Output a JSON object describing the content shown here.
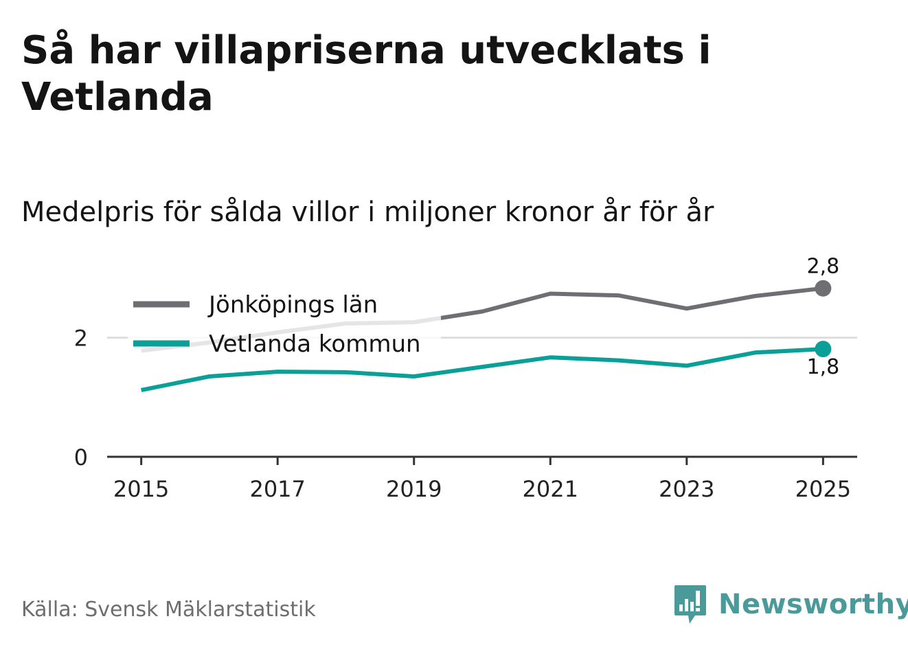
{
  "title": "Så har villapriserna utvecklats i Vetlanda",
  "subtitle": "Medelpris för sålda villor i miljoner kronor år för år",
  "source": "Källa: Svensk Mäklarstatistik",
  "brand": {
    "name": "Newsworthy",
    "icon": "newsworthy-logo-icon",
    "color": "#4a9a9a"
  },
  "colors": {
    "axis": "#333333",
    "grid": "#dddddd",
    "tick_text": "#222222"
  },
  "chart_data": {
    "type": "line",
    "title": "Så har villapriserna utvecklats i Vetlanda",
    "xlabel": "",
    "ylabel": "Medelpris för sålda villor i miljoner kronor år för år",
    "x": [
      2015,
      2016,
      2017,
      2018,
      2019,
      2020,
      2021,
      2022,
      2023,
      2024,
      2025
    ],
    "x_ticks": [
      "2015",
      "2017",
      "2019",
      "2021",
      "2023",
      "2025"
    ],
    "y_ticks": [
      "0",
      "2"
    ],
    "ylim": [
      0,
      2.85
    ],
    "xlim": [
      2014.5,
      2025.5
    ],
    "series": [
      {
        "name": "Jönköpings län",
        "color": "#6e6e73",
        "values": [
          1.78,
          1.92,
          2.09,
          2.24,
          2.26,
          2.44,
          2.74,
          2.71,
          2.49,
          2.7,
          2.83
        ],
        "end_label": "2,8"
      },
      {
        "name": "Vetlanda kommun",
        "color": "#0aa098",
        "values": [
          1.12,
          1.35,
          1.43,
          1.42,
          1.35,
          1.51,
          1.67,
          1.62,
          1.53,
          1.75,
          1.81
        ],
        "end_label": "1,8"
      }
    ],
    "legend": [
      "Jönköpings län",
      "Vetlanda kommun"
    ],
    "legend_position": "top-left"
  }
}
